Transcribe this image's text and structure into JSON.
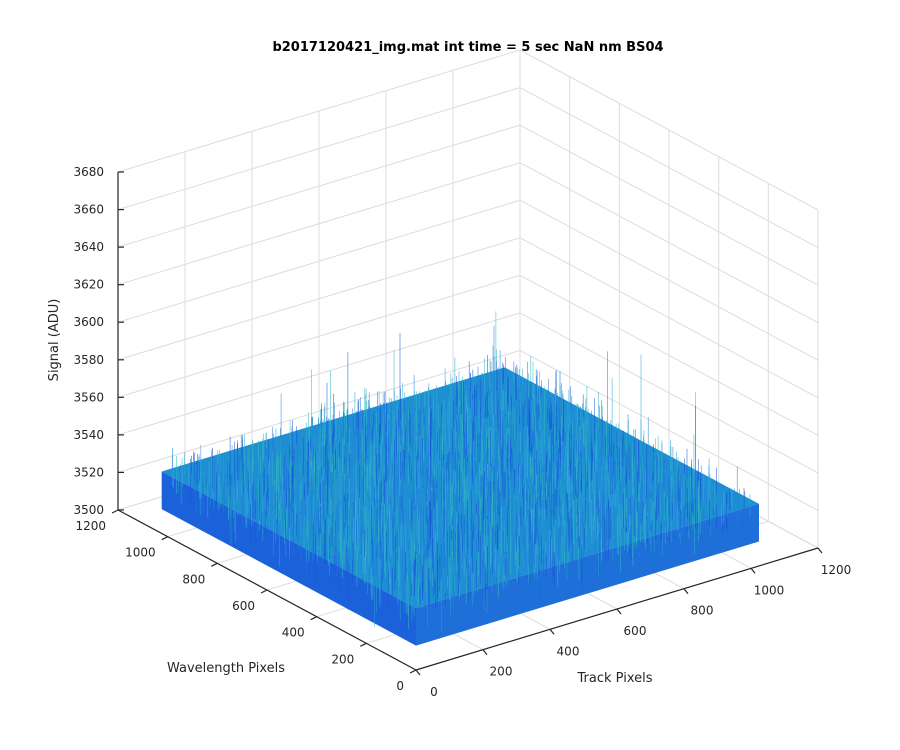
{
  "chart_data": {
    "type": "surface",
    "title": "b2017120421_img.mat int time = 5 sec  NaN nm BS04",
    "xlabel": "Track Pixels",
    "ylabel": "Wavelength Pixels",
    "zlabel": "Signal (ADU)",
    "x_ticks": [
      "0",
      "200",
      "400",
      "600",
      "800",
      "1000",
      "1200"
    ],
    "y_ticks": [
      "0",
      "200",
      "400",
      "600",
      "800",
      "1000",
      "1200"
    ],
    "z_ticks": [
      "3500",
      "3520",
      "3540",
      "3560",
      "3580",
      "3600",
      "3620",
      "3640",
      "3660",
      "3680"
    ],
    "xlim": [
      0,
      1200
    ],
    "ylim": [
      0,
      1200
    ],
    "zlim": [
      3500,
      3680
    ],
    "surface_extent": {
      "x": [
        0,
        1024
      ],
      "y": [
        0,
        1024
      ]
    },
    "signal_mean": 3533,
    "signal_noise_range": [
      3505,
      3620
    ],
    "grid": true,
    "colormap": [
      "#1a52d9",
      "#1f7ed6",
      "#26a3d2",
      "#33b8c0"
    ]
  }
}
